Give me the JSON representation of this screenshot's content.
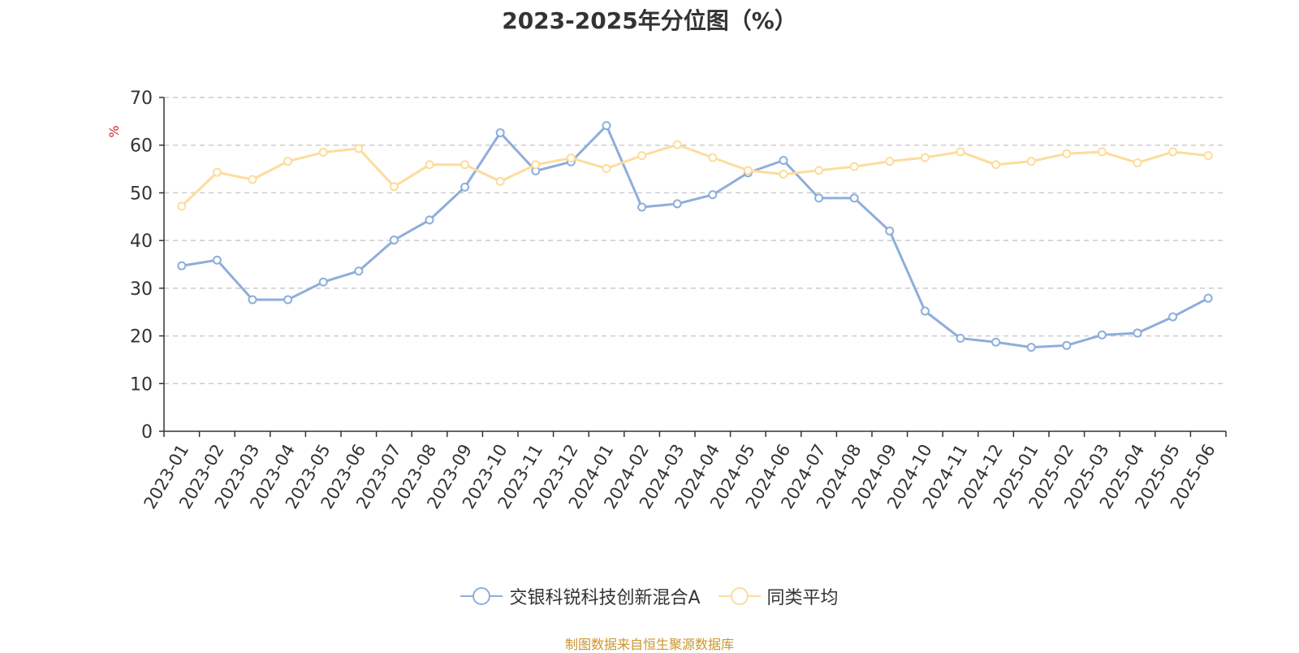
{
  "chart_data": {
    "type": "line",
    "title": "2023-2025年分位图（%）",
    "ylabel": "%",
    "xlabel": "",
    "ylim": [
      0,
      70
    ],
    "yticks": [
      0,
      10,
      20,
      30,
      40,
      50,
      60,
      70
    ],
    "grid": true,
    "legend_position": "bottom",
    "categories": [
      "2023-01",
      "2023-02",
      "2023-03",
      "2023-04",
      "2023-05",
      "2023-06",
      "2023-07",
      "2023-08",
      "2023-09",
      "2023-10",
      "2023-11",
      "2023-12",
      "2024-01",
      "2024-02",
      "2024-03",
      "2024-04",
      "2024-05",
      "2024-06",
      "2024-07",
      "2024-08",
      "2024-09",
      "2024-10",
      "2024-11",
      "2024-12",
      "2025-01",
      "2025-02",
      "2025-03",
      "2025-04",
      "2025-05",
      "2025-06"
    ],
    "series": [
      {
        "name": "交银科锐科技创新混合A",
        "color": "#8eaedb",
        "values": [
          34.7,
          35.9,
          27.6,
          27.6,
          31.3,
          33.6,
          40.1,
          44.3,
          51.2,
          62.6,
          54.6,
          56.5,
          64.1,
          47.0,
          47.7,
          49.6,
          54.2,
          56.8,
          48.9,
          48.9,
          42.0,
          25.2,
          19.5,
          18.7,
          17.6,
          18.0,
          20.2,
          20.6,
          24.0,
          27.9
        ]
      },
      {
        "name": "同类平均",
        "color": "#fddc9c",
        "values": [
          47.2,
          54.3,
          52.8,
          56.6,
          58.5,
          59.3,
          51.3,
          55.9,
          55.9,
          52.4,
          55.9,
          57.3,
          55.1,
          57.8,
          60.1,
          57.4,
          54.7,
          53.9,
          54.7,
          55.5,
          56.6,
          57.4,
          58.6,
          55.9,
          56.6,
          58.2,
          58.6,
          56.3,
          58.6,
          57.8
        ]
      }
    ]
  },
  "source_note": "制图数据来自恒生聚源数据库"
}
